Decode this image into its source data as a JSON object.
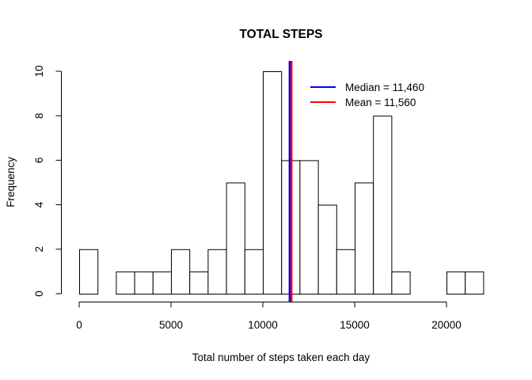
{
  "chart_data": {
    "type": "bar",
    "title": "TOTAL STEPS",
    "xlabel": "Total number of steps taken each day",
    "ylabel": "Frequency",
    "bin_width": 1000,
    "bin_start": 0,
    "values": [
      2,
      0,
      1,
      1,
      1,
      2,
      1,
      2,
      5,
      2,
      10,
      6,
      6,
      4,
      2,
      5,
      8,
      1,
      0,
      0,
      1,
      1
    ],
    "xlim": [
      0,
      22000
    ],
    "ylim": [
      0,
      10
    ],
    "x_ticks": [
      0,
      5000,
      10000,
      15000,
      20000
    ],
    "y_ticks": [
      0,
      2,
      4,
      6,
      8,
      10
    ],
    "reference_lines": [
      {
        "name": "Median = 11,460",
        "value": 11460,
        "color": "#0000ff"
      },
      {
        "name": "Mean = 11,560",
        "value": 11560,
        "color": "#ff0000"
      }
    ],
    "legend_position": "top-right",
    "grid": false
  }
}
